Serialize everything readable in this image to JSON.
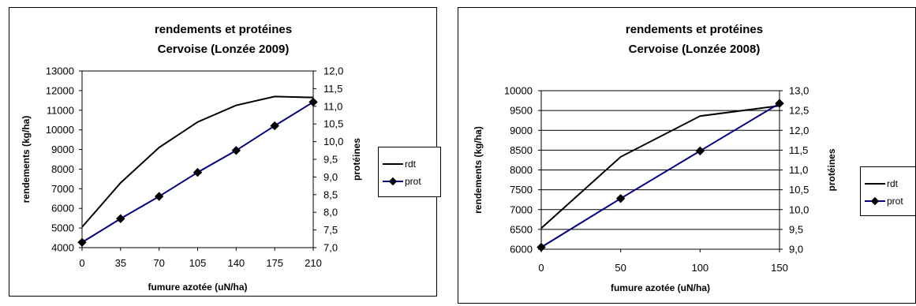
{
  "chart_data": [
    {
      "type": "line",
      "title": [
        "rendements et protéines",
        "Cervoise (Lonzée 2009)"
      ],
      "xlabel": "fumure azotée (uN/ha)",
      "ylabel": "rendements (kg/ha)",
      "y2label": "protéines",
      "x": [
        0,
        35,
        70,
        105,
        140,
        175,
        210
      ],
      "xticks": [
        "0",
        "35",
        "70",
        "105",
        "140",
        "175",
        "210"
      ],
      "ylim": [
        4000,
        13000
      ],
      "yticks": [
        "4000",
        "5000",
        "6000",
        "7000",
        "8000",
        "9000",
        "10000",
        "11000",
        "12000",
        "13000"
      ],
      "y2lim": [
        7.0,
        12.0
      ],
      "y2ticks": [
        "7,0",
        "7,5",
        "8,0",
        "8,5",
        "9,0",
        "9,5",
        "10,0",
        "10,5",
        "11,0",
        "11,5",
        "12,0"
      ],
      "grid": false,
      "legend": "right",
      "series": [
        {
          "name": "rdt",
          "axis": "left",
          "color": "#000000",
          "marker": "none",
          "values": [
            5050,
            7300,
            9100,
            10400,
            11250,
            11700,
            11650
          ]
        },
        {
          "name": "prot",
          "axis": "right",
          "color": "#000080",
          "marker": "diamond",
          "values": [
            7.15,
            7.82,
            8.45,
            9.13,
            9.75,
            10.45,
            11.12
          ]
        }
      ]
    },
    {
      "type": "line",
      "title": [
        "rendements et protéines",
        "Cervoise (Lonzée 2008)"
      ],
      "xlabel": "fumure azotée (uN/ha)",
      "ylabel": "rendements (kg/ha)",
      "y2label": "protéines",
      "x": [
        0,
        50,
        100,
        150
      ],
      "xticks": [
        "0",
        "50",
        "100",
        "150"
      ],
      "ylim": [
        6000,
        10000
      ],
      "yticks": [
        "6000",
        "6500",
        "7000",
        "7500",
        "8000",
        "8500",
        "9000",
        "9500",
        "10000"
      ],
      "y2lim": [
        9.0,
        13.0
      ],
      "y2ticks": [
        "9,0",
        "9,5",
        "10,0",
        "10,5",
        "11,0",
        "11,5",
        "12,0",
        "12,5",
        "13,0"
      ],
      "grid": true,
      "legend": "right",
      "series": [
        {
          "name": "rdt",
          "axis": "left",
          "color": "#000000",
          "marker": "none",
          "values": [
            6530,
            8330,
            9360,
            9620
          ]
        },
        {
          "name": "prot",
          "axis": "right",
          "color": "#000080",
          "marker": "diamond",
          "values": [
            9.05,
            10.28,
            11.48,
            12.68
          ]
        }
      ]
    }
  ]
}
